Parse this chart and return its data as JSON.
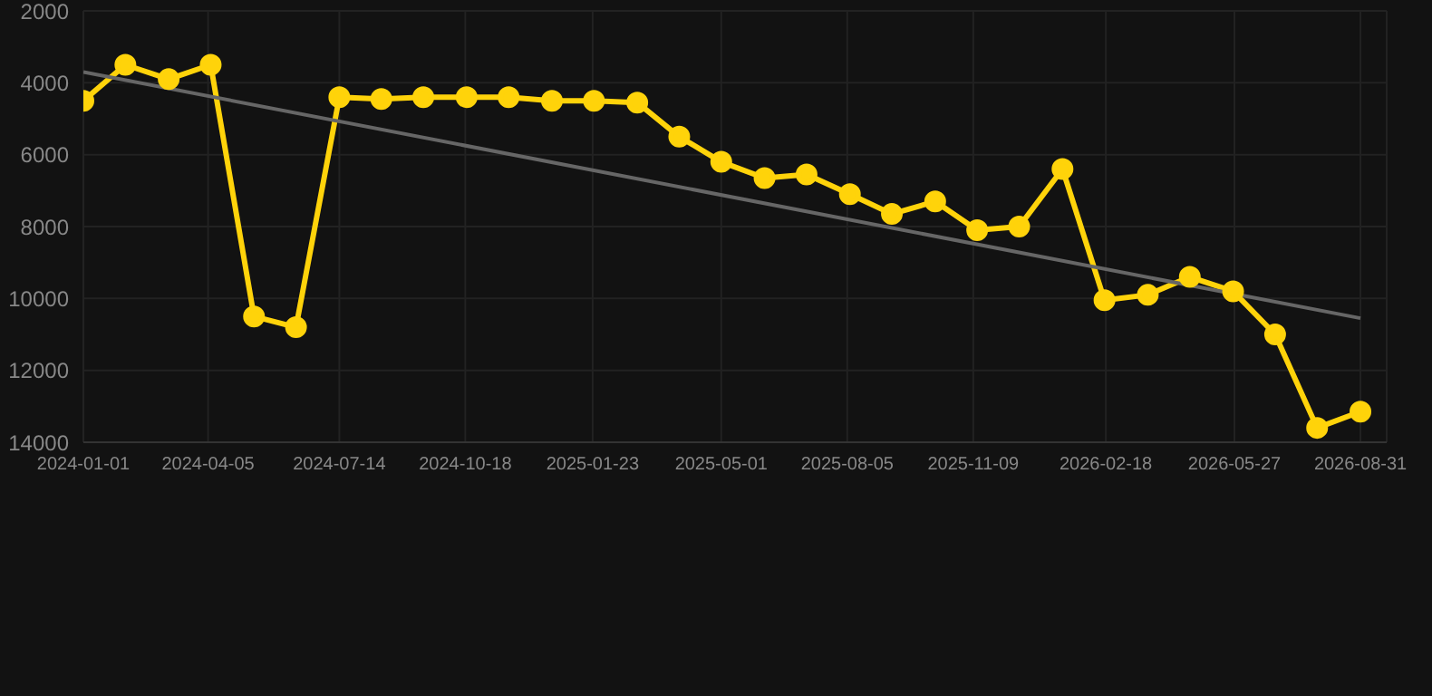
{
  "chart_data": {
    "type": "line",
    "x": [
      "2024-01-01",
      "2024-02-02",
      "2024-03-06",
      "2024-04-07",
      "2024-05-10",
      "2024-06-11",
      "2024-07-14",
      "2024-08-15",
      "2024-09-16",
      "2024-10-19",
      "2024-11-20",
      "2024-12-23",
      "2025-01-24",
      "2025-02-26",
      "2025-03-30",
      "2025-05-01",
      "2025-06-03",
      "2025-07-05",
      "2025-08-07",
      "2025-09-08",
      "2025-10-11",
      "2025-11-12",
      "2025-12-14",
      "2026-01-16",
      "2026-02-17",
      "2026-03-22",
      "2026-04-23",
      "2026-05-26",
      "2026-06-27",
      "2026-07-29",
      "2026-08-31"
    ],
    "series": [
      {
        "color": "#ffd30a",
        "marker": "circle",
        "values": [
          4500,
          3500,
          3900,
          3500,
          10500,
          10800,
          4400,
          4450,
          4400,
          4400,
          4400,
          4500,
          4500,
          4550,
          5500,
          6200,
          6650,
          6550,
          7100,
          7650,
          7300,
          8100,
          8000,
          6400,
          10050,
          9900,
          9400,
          9800,
          11000,
          13600,
          13150
        ]
      },
      {
        "type": "line",
        "color": "#666666",
        "marker": "none",
        "x": [
          "2024-01-01",
          "2026-08-31"
        ],
        "values": [
          3700,
          10550
        ]
      }
    ],
    "xlim": [
      "2024-01-01",
      "2026-09-20"
    ],
    "xticks": [
      "2024-01-01",
      "2024-04-05",
      "2024-07-14",
      "2024-10-18",
      "2025-01-23",
      "2025-05-01",
      "2025-08-05",
      "2025-11-09",
      "2026-02-18",
      "2026-05-27",
      "2026-08-31"
    ],
    "ylim": [
      14000,
      2000
    ],
    "yticks": [
      2000,
      4000,
      6000,
      8000,
      10000,
      12000,
      14000
    ],
    "grid": true
  }
}
